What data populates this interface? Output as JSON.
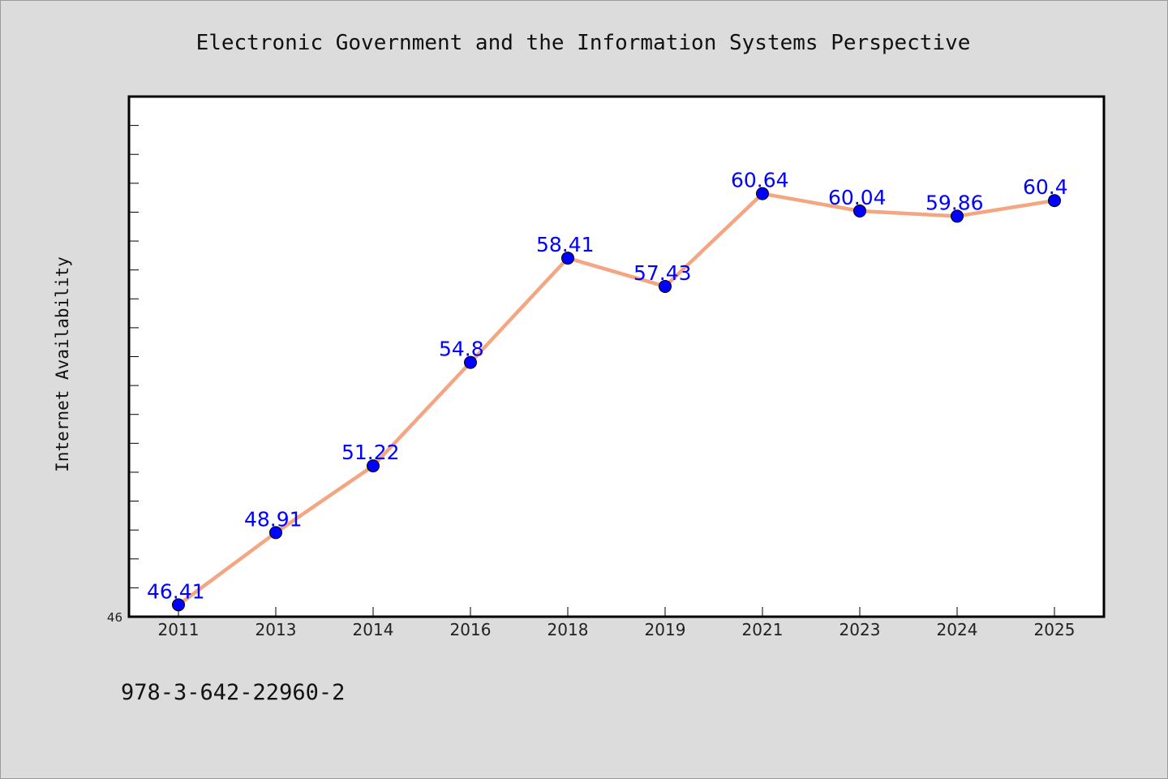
{
  "chart_data": {
    "type": "line",
    "title": "Electronic Government and the Information Systems Perspective",
    "ylabel": "Internet Availability",
    "xlabel": "",
    "categories": [
      "2011",
      "2013",
      "2014",
      "2016",
      "2018",
      "2019",
      "2021",
      "2023",
      "2024",
      "2025"
    ],
    "series": [
      {
        "values": [
          46.41,
          48.91,
          51.22,
          54.8,
          58.41,
          57.43,
          60.64,
          60.04,
          59.86,
          60.4
        ],
        "labels": [
          "46.41",
          "48.91",
          "51.22",
          "54.8",
          "58.41",
          "57.43",
          "60.64",
          "60.04",
          "59.86",
          "60.4"
        ],
        "line_color": "#f4a582",
        "marker_color": "#0000ff",
        "label_color": "#0000ff"
      }
    ],
    "ylim": [
      46,
      64
    ],
    "ytick_labels": [
      "46"
    ],
    "grid": false,
    "legend": "none"
  },
  "caption": "978-3-642-22960-2",
  "colors": {
    "background": "#dcdcdc",
    "plot_background": "#ffffff",
    "axis": "#000000"
  }
}
